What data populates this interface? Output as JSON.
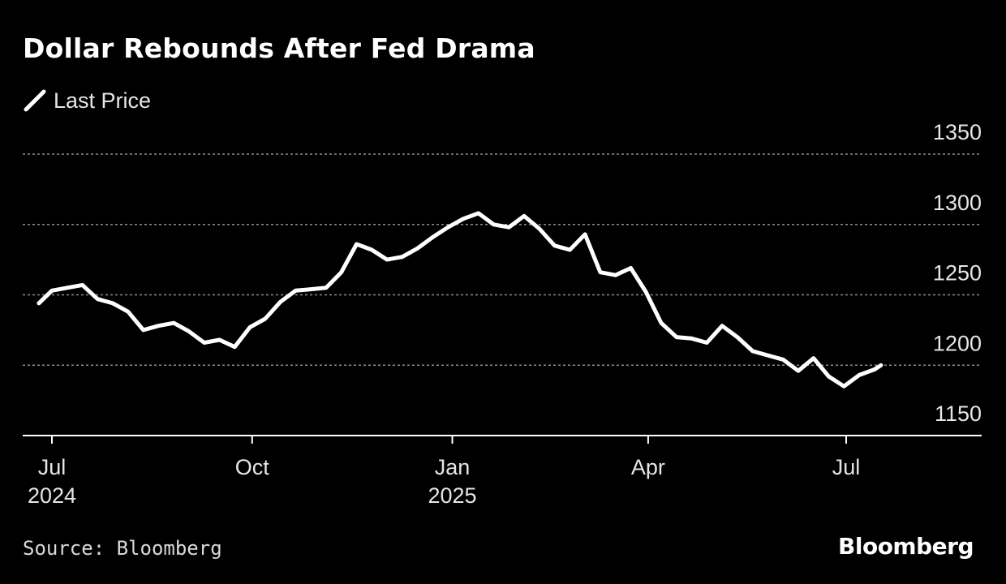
{
  "chart_data": {
    "type": "line",
    "title": "Dollar Rebounds After Fed Drama",
    "subtitle": "",
    "xlabel": "",
    "ylabel": "",
    "ylim": [
      1150,
      1350
    ],
    "y_ticks": [
      1150,
      1200,
      1250,
      1300,
      1350
    ],
    "grid": true,
    "legend": "top-left",
    "x_ticks": [
      {
        "date": "2024-07-01",
        "line1": "Jul",
        "line2": "2024"
      },
      {
        "date": "2024-10-01",
        "line1": "Oct",
        "line2": ""
      },
      {
        "date": "2025-01-01",
        "line1": "Jan",
        "line2": "2025"
      },
      {
        "date": "2025-04-01",
        "line1": "Apr",
        "line2": ""
      },
      {
        "date": "2025-07-01",
        "line1": "Jul",
        "line2": ""
      }
    ],
    "series": [
      {
        "name": "Last Price",
        "color": "#ffffff",
        "dates": [
          "2024-06-25",
          "2024-07-01",
          "2024-07-08",
          "2024-07-15",
          "2024-07-22",
          "2024-07-29",
          "2024-08-05",
          "2024-08-12",
          "2024-08-19",
          "2024-08-26",
          "2024-09-02",
          "2024-09-09",
          "2024-09-16",
          "2024-09-23",
          "2024-09-30",
          "2024-10-07",
          "2024-10-14",
          "2024-10-21",
          "2024-10-28",
          "2024-11-04",
          "2024-11-11",
          "2024-11-18",
          "2024-11-25",
          "2024-12-02",
          "2024-12-09",
          "2024-12-16",
          "2024-12-23",
          "2024-12-30",
          "2025-01-06",
          "2025-01-13",
          "2025-01-20",
          "2025-01-27",
          "2025-02-03",
          "2025-02-10",
          "2025-02-17",
          "2025-02-24",
          "2025-03-03",
          "2025-03-10",
          "2025-03-17",
          "2025-03-24",
          "2025-03-31",
          "2025-04-07",
          "2025-04-14",
          "2025-04-21",
          "2025-04-28",
          "2025-05-05",
          "2025-05-12",
          "2025-05-19",
          "2025-05-26",
          "2025-06-02",
          "2025-06-09",
          "2025-06-16",
          "2025-06-23",
          "2025-06-30",
          "2025-07-07",
          "2025-07-14",
          "2025-07-17"
        ],
        "values": [
          1244,
          1253,
          1255,
          1257,
          1247,
          1244,
          1238,
          1225,
          1228,
          1230,
          1224,
          1216,
          1218,
          1213,
          1227,
          1233,
          1245,
          1253,
          1254,
          1255,
          1266,
          1286,
          1282,
          1275,
          1277,
          1283,
          1291,
          1298,
          1304,
          1308,
          1300,
          1298,
          1306,
          1297,
          1285,
          1282,
          1293,
          1266,
          1264,
          1269,
          1252,
          1230,
          1220,
          1219,
          1216,
          1228,
          1220,
          1210,
          1207,
          1204,
          1196,
          1205,
          1192,
          1185,
          1193,
          1197,
          1200
        ]
      }
    ]
  },
  "source": "Source: Bloomberg",
  "brand": "Bloomberg"
}
